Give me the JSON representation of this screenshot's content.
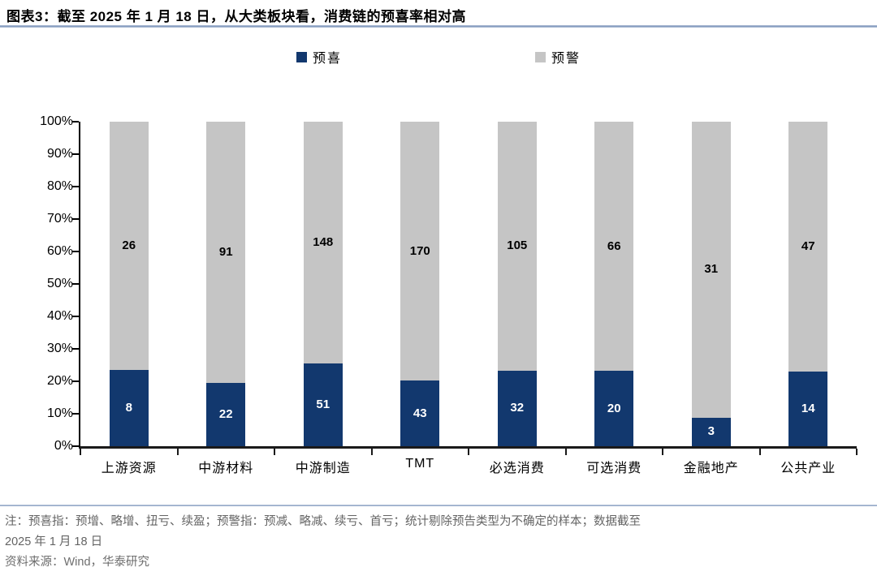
{
  "title": {
    "prefix": "图表3：",
    "text": "截至 2025 年 1 月 18 日，从大类板块看，消费链的预喜率相对高"
  },
  "chart_data": {
    "type": "bar",
    "stacked": true,
    "normalized": "percent",
    "title": "截至 2025 年 1 月 18 日，从大类板块看，消费链的预喜率相对高",
    "categories": [
      "上游资源",
      "中游材料",
      "中游制造",
      "TMT",
      "必选消费",
      "可选消费",
      "金融地产",
      "公共产业"
    ],
    "series": [
      {
        "name": "预喜",
        "color": "#12386e",
        "label_color": "#ffffff",
        "values": [
          8,
          22,
          51,
          43,
          32,
          20,
          3,
          14
        ]
      },
      {
        "name": "预警",
        "color": "#c5c5c5",
        "label_color": "#000000",
        "values": [
          26,
          91,
          148,
          170,
          105,
          66,
          31,
          47
        ]
      }
    ],
    "xlabel": "",
    "ylabel": "",
    "ylim": [
      0,
      100
    ],
    "y_ticks": [
      "0%",
      "10%",
      "20%",
      "30%",
      "40%",
      "50%",
      "60%",
      "70%",
      "80%",
      "90%",
      "100%"
    ],
    "grid": false,
    "legend_position": "top"
  },
  "footnote": {
    "note_line1": "注：预喜指：预增、略增、扭亏、续盈；预警指：预减、略减、续亏、首亏；统计剔除预告类型为不确定的样本；数据截至",
    "note_line2": "2025 年 1 月 18 日",
    "source": "资料来源：Wind，华泰研究"
  }
}
